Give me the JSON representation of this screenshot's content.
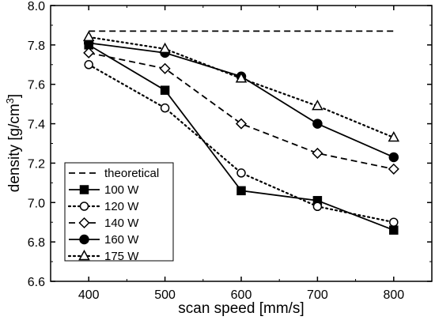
{
  "chart_data": {
    "type": "line",
    "xlabel": "scan speed [mm/s]",
    "ylabel": "density [g/cm",
    "ylabel_sup": "3",
    "ylabel_end": "]",
    "xlim": [
      350,
      850
    ],
    "ylim": [
      6.6,
      8.0
    ],
    "xticks": [
      400,
      500,
      600,
      700,
      800
    ],
    "yticks": [
      6.6,
      6.8,
      7.0,
      7.2,
      7.4,
      7.6,
      7.8,
      8.0
    ],
    "xtick_labels": [
      "400",
      "500",
      "600",
      "700",
      "800"
    ],
    "ytick_labels": [
      "6.6",
      "6.8",
      "7.0",
      "7.2",
      "7.4",
      "7.6",
      "7.8",
      "8.0"
    ],
    "grid": false,
    "legend_position": "bottom-left",
    "series": [
      {
        "name": "theoretical",
        "x": [
          400,
          800
        ],
        "y": [
          7.87,
          7.87
        ],
        "dash": "dashed",
        "marker": "none"
      },
      {
        "name": "100 W",
        "x": [
          400,
          500,
          600,
          700,
          800
        ],
        "y": [
          7.8,
          7.57,
          7.06,
          7.01,
          6.86
        ],
        "dash": "solid",
        "marker": "square-filled"
      },
      {
        "name": "120 W",
        "x": [
          400,
          500,
          600,
          700,
          800
        ],
        "y": [
          7.7,
          7.48,
          7.15,
          6.98,
          6.9
        ],
        "dash": "dotted",
        "marker": "circle-open"
      },
      {
        "name": "140 W",
        "x": [
          400,
          500,
          600,
          700,
          800
        ],
        "y": [
          7.76,
          7.68,
          7.4,
          7.25,
          7.17
        ],
        "dash": "dashed",
        "marker": "diamond-open"
      },
      {
        "name": "160 W",
        "x": [
          400,
          500,
          600,
          700,
          800
        ],
        "y": [
          7.81,
          7.76,
          7.64,
          7.4,
          7.23
        ],
        "dash": "solid",
        "marker": "circle-filled"
      },
      {
        "name": "175 W",
        "x": [
          400,
          500,
          600,
          700,
          800
        ],
        "y": [
          7.84,
          7.78,
          7.63,
          7.49,
          7.33
        ],
        "dash": "dotted",
        "marker": "triangle-open"
      }
    ]
  }
}
